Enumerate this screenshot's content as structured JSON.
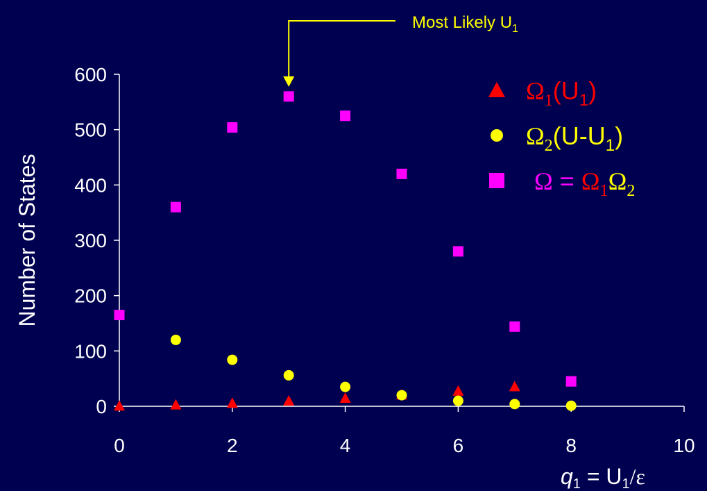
{
  "chart_data": {
    "type": "scatter",
    "xlabel_parts": {
      "q": "q",
      "q_sub": "1",
      "rest": " = U",
      "u_sub": "1",
      "tail": "/ε"
    },
    "ylabel": "Number of States",
    "xlim": [
      0,
      10
    ],
    "ylim": [
      0,
      600
    ],
    "xticks": [
      0,
      2,
      4,
      6,
      8,
      10
    ],
    "yticks": [
      0,
      100,
      200,
      300,
      400,
      500,
      600
    ],
    "grid": false,
    "legend_position": "top-right",
    "series": [
      {
        "key": "omega1",
        "marker": "triangle",
        "color": "#ff0000",
        "x": [
          0,
          1,
          2,
          3,
          4,
          5,
          6,
          7,
          8
        ],
        "y": [
          1,
          3,
          6,
          10,
          15,
          21,
          28,
          36,
          45
        ]
      },
      {
        "key": "omega2",
        "marker": "circle",
        "color": "#ffff00",
        "x": [
          0,
          1,
          2,
          3,
          4,
          5,
          6,
          7,
          8
        ],
        "y": [
          165,
          120,
          84,
          56,
          35,
          20,
          10,
          4,
          1
        ]
      },
      {
        "key": "omega",
        "marker": "square",
        "color": "#ff00ff",
        "x": [
          0,
          1,
          2,
          3,
          4,
          5,
          6,
          7,
          8
        ],
        "y": [
          165,
          360,
          504,
          560,
          525,
          420,
          280,
          144,
          45
        ]
      }
    ],
    "legend": [
      {
        "parts": [
          {
            "t": "Ω",
            "c": "#ff0000"
          },
          {
            "t": "1",
            "c": "#ff0000",
            "sub": true
          },
          {
            "t": "(U",
            "c": "#ff0000",
            "sans": true
          },
          {
            "t": "1",
            "c": "#ff0000",
            "sub": true,
            "sans": true
          },
          {
            "t": ")",
            "c": "#ff0000",
            "sans": true
          }
        ]
      },
      {
        "parts": [
          {
            "t": "Ω",
            "c": "#ffff00"
          },
          {
            "t": "2",
            "c": "#ffff00",
            "sub": true
          },
          {
            "t": "(U-U",
            "c": "#ffff00",
            "sans": true
          },
          {
            "t": "1",
            "c": "#ffff00",
            "sub": true,
            "sans": true
          },
          {
            "t": ")",
            "c": "#ffff00",
            "sans": true
          }
        ]
      },
      {
        "parts": [
          {
            "t": "Ω",
            "c": "#ff00ff"
          },
          {
            "t": " = ",
            "c": "#ff00ff",
            "sans": true
          },
          {
            "t": "Ω",
            "c": "#ff0000"
          },
          {
            "t": "1",
            "c": "#ff0000",
            "sub": true
          },
          {
            "t": "Ω",
            "c": "#ffff00"
          },
          {
            "t": "2",
            "c": "#ffff00",
            "sub": true
          }
        ]
      }
    ],
    "annotation": {
      "text": "Most Likely U",
      "sub": "1",
      "x": 3
    }
  }
}
